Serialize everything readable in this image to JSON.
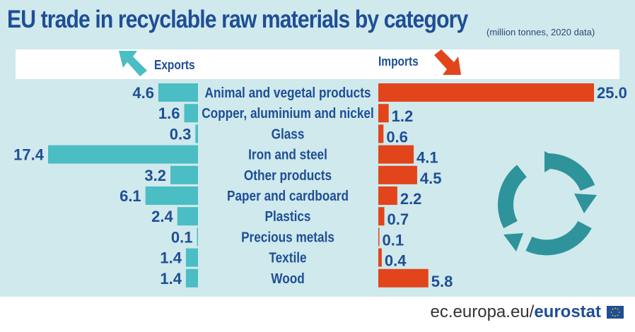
{
  "title": "EU trade in recyclable raw materials by category",
  "subtitle": "(million tonnes, 2020 data)",
  "exports_label": "Exports",
  "imports_label": "Imports",
  "footer": {
    "domain": "ec.europa.eu/",
    "brand": "eurostat"
  },
  "colors": {
    "exports": "#4bbdc4",
    "imports": "#e2441c",
    "text": "#1f4e96",
    "background": "#cfe9ec"
  },
  "icons": {
    "exports_arrow": "arrow-up-left-icon",
    "imports_arrow": "arrow-down-right-icon",
    "recycle": "recycle-circle-icon",
    "flag": "eu-flag-icon"
  },
  "chart_data": {
    "type": "bar",
    "orientation": "horizontal-butterfly",
    "categories": [
      "Animal and vegetal products",
      "Copper, aluminium and nickel",
      "Glass",
      "Iron and steel",
      "Other products",
      "Paper and cardboard",
      "Plastics",
      "Precious metals",
      "Textile",
      "Wood"
    ],
    "series": [
      {
        "name": "Exports",
        "values": [
          4.6,
          1.6,
          0.3,
          17.4,
          3.2,
          6.1,
          2.4,
          0.1,
          1.4,
          1.4
        ],
        "labels": [
          "4.6",
          "1.6",
          "0.3",
          "17.4",
          "3.2",
          "6.1",
          "2.4",
          "0.1",
          "1.4",
          "1.4"
        ]
      },
      {
        "name": "Imports",
        "values": [
          25.0,
          1.2,
          0.6,
          4.1,
          4.5,
          2.2,
          0.7,
          0.1,
          0.4,
          5.8
        ],
        "labels": [
          "25.0",
          "1.2",
          "0.6",
          "4.1",
          "4.5",
          "2.2",
          "0.7",
          "0.1",
          "0.4",
          "5.8"
        ]
      }
    ]
  }
}
